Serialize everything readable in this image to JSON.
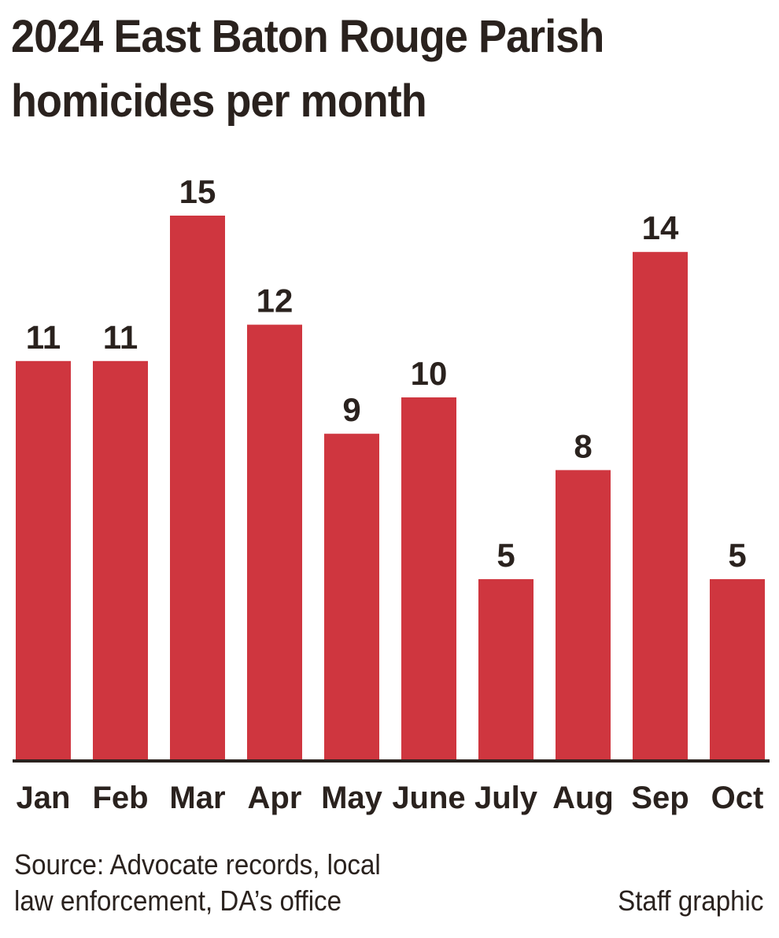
{
  "title_lines": [
    "2024 East Baton Rouge Parish",
    "homicides per month"
  ],
  "source_lines": [
    "Source: Advocate records, local",
    "law enforcement, DA’s office"
  ],
  "credit": "Staff graphic",
  "colors": {
    "bar": "#cf363f",
    "text": "#2a221e",
    "background": "#ffffff"
  },
  "chart_data": {
    "type": "bar",
    "title": "2024 East Baton Rouge Parish homicides per month",
    "categories": [
      "Jan",
      "Feb",
      "Mar",
      "Apr",
      "May",
      "June",
      "July",
      "Aug",
      "Sep",
      "Oct"
    ],
    "values": [
      11,
      11,
      15,
      12,
      9,
      10,
      5,
      8,
      14,
      5
    ],
    "xlabel": "",
    "ylabel": "",
    "ylim": [
      0,
      15
    ],
    "grid": false,
    "legend": "none",
    "data_labels": true
  }
}
